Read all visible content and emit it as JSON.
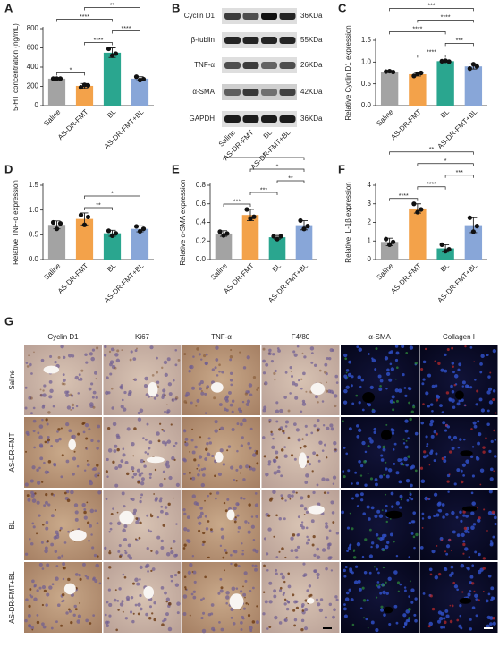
{
  "chart_data": [
    {
      "type": "bar",
      "panel": "A",
      "ylabel": "5-HT concentration (ng/mL)",
      "categories": [
        "Saline",
        "AS-DR-FMT",
        "BL",
        "AS-DR-FMT+BL"
      ],
      "colors": [
        "#a3a3a3",
        "#f3a24a",
        "#2aa68f",
        "#88a6d8"
      ],
      "values": [
        280,
        205,
        550,
        280
      ],
      "errors": [
        5,
        25,
        50,
        20
      ],
      "points": [
        [
          280,
          280,
          280
        ],
        [
          190,
          215,
          210
        ],
        [
          590,
          520,
          540
        ],
        [
          300,
          265,
          275
        ]
      ],
      "ylim": [
        0,
        800
      ],
      "yticks": [
        0,
        200,
        400,
        600,
        800
      ],
      "significance": [
        {
          "from": 0,
          "to": 1,
          "text": "*"
        },
        {
          "from": 1,
          "to": 2,
          "text": "****"
        },
        {
          "from": 2,
          "to": 3,
          "text": "****"
        },
        {
          "from": 0,
          "to": 2,
          "text": "****"
        },
        {
          "from": 1,
          "to": 3,
          "text": "**"
        }
      ]
    },
    {
      "type": "bar",
      "panel": "C",
      "ylabel": "Relative Cyclin D1 expression",
      "categories": [
        "Saline",
        "AS-DR-FMT",
        "BL",
        "AS-DR-FMT+BL"
      ],
      "colors": [
        "#a3a3a3",
        "#f3a24a",
        "#2aa68f",
        "#88a6d8"
      ],
      "values": [
        0.78,
        0.72,
        1.02,
        0.9
      ],
      "errors": [
        0.01,
        0.04,
        0.02,
        0.06
      ],
      "points": [
        [
          0.78,
          0.79,
          0.77
        ],
        [
          0.68,
          0.73,
          0.75
        ],
        [
          1.02,
          1.03,
          1.01
        ],
        [
          0.85,
          0.95,
          0.9
        ]
      ],
      "ylim": [
        0,
        1.5
      ],
      "yticks": [
        {
          "value": 0,
          "label": "0.0"
        },
        0.5,
        {
          "value": 1,
          "label": "1.0"
        },
        1.5
      ],
      "significance": [
        {
          "from": 1,
          "to": 2,
          "text": "****"
        },
        {
          "from": 2,
          "to": 3,
          "text": "***"
        },
        {
          "from": 0,
          "to": 2,
          "text": "****"
        },
        {
          "from": 1,
          "to": 3,
          "text": "****"
        },
        {
          "from": 0,
          "to": 3,
          "text": "***"
        }
      ]
    },
    {
      "type": "bar",
      "panel": "D",
      "ylabel": "Relative TNF-α expression",
      "categories": [
        "Saline",
        "AS-DR-FMT",
        "BL",
        "AS-DR-FMT+BL"
      ],
      "colors": [
        "#a3a3a3",
        "#f3a24a",
        "#2aa68f",
        "#88a6d8"
      ],
      "values": [
        0.7,
        0.82,
        0.53,
        0.62
      ],
      "errors": [
        0.08,
        0.12,
        0.06,
        0.06
      ],
      "points": [
        [
          0.75,
          0.62,
          0.73
        ],
        [
          0.9,
          0.7,
          0.86
        ],
        [
          0.58,
          0.48,
          0.53
        ],
        [
          0.67,
          0.57,
          0.62
        ]
      ],
      "ylim": [
        0,
        1.5
      ],
      "yticks": [
        {
          "value": 0,
          "label": "0.0"
        },
        0.5,
        {
          "value": 1,
          "label": "1.0"
        },
        1.5
      ],
      "significance": [
        {
          "from": 1,
          "to": 2,
          "text": "**"
        },
        {
          "from": 1,
          "to": 3,
          "text": "*"
        }
      ]
    },
    {
      "type": "bar",
      "panel": "E",
      "ylabel": "Relative α-SMA expression",
      "categories": [
        "Saline",
        "AS-DR-FMT",
        "BL",
        "AS-DR-FMT+BL"
      ],
      "colors": [
        "#a3a3a3",
        "#f3a24a",
        "#2aa68f",
        "#88a6d8"
      ],
      "values": [
        0.28,
        0.48,
        0.24,
        0.37
      ],
      "errors": [
        0.03,
        0.06,
        0.02,
        0.05
      ],
      "points": [
        [
          0.3,
          0.26,
          0.28
        ],
        [
          0.54,
          0.44,
          0.46
        ],
        [
          0.25,
          0.22,
          0.25
        ],
        [
          0.42,
          0.33,
          0.36
        ]
      ],
      "ylim": [
        0,
        0.8
      ],
      "yticks": [
        {
          "value": 0,
          "label": "0.0"
        },
        0.2,
        0.4,
        0.6,
        0.8
      ],
      "significance": [
        {
          "from": 0,
          "to": 1,
          "text": "***"
        },
        {
          "from": 1,
          "to": 2,
          "text": "***"
        },
        {
          "from": 2,
          "to": 3,
          "text": "**"
        },
        {
          "from": 1,
          "to": 3,
          "text": "*"
        },
        {
          "from": 0,
          "to": 3,
          "text": "*"
        }
      ]
    },
    {
      "type": "bar",
      "panel": "F",
      "ylabel": "Relative IL-1β expression",
      "categories": [
        "Saline",
        "AS-DR-FMT",
        "BL",
        "AS-DR-FMT+BL"
      ],
      "colors": [
        "#a3a3a3",
        "#f3a24a",
        "#2aa68f",
        "#88a6d8"
      ],
      "values": [
        0.95,
        2.75,
        0.6,
        1.85
      ],
      "errors": [
        0.2,
        0.25,
        0.2,
        0.4
      ],
      "points": [
        [
          1.1,
          0.8,
          0.95
        ],
        [
          3.0,
          2.55,
          2.7
        ],
        [
          0.8,
          0.45,
          0.55
        ],
        [
          2.25,
          1.5,
          1.8
        ]
      ],
      "ylim": [
        0,
        4
      ],
      "yticks": [
        0,
        1,
        2,
        3,
        4
      ],
      "significance": [
        {
          "from": 0,
          "to": 1,
          "text": "****"
        },
        {
          "from": 1,
          "to": 2,
          "text": "****"
        },
        {
          "from": 2,
          "to": 3,
          "text": "***"
        },
        {
          "from": 1,
          "to": 3,
          "text": "*"
        },
        {
          "from": 0,
          "to": 3,
          "text": "**"
        }
      ]
    }
  ],
  "blot": {
    "panel": "B",
    "proteins": [
      {
        "name": "Cyclin D1",
        "size": "36KDa"
      },
      {
        "name": "β-tublin",
        "size": "55KDa"
      },
      {
        "name": "TNF-α",
        "size": "26KDa"
      },
      {
        "name": "α-SMA",
        "size": "42KDa"
      },
      {
        "name": "GAPDH",
        "size": "36KDa"
      }
    ],
    "lanes": [
      "Saline",
      "AS-DR-FMT",
      "BL",
      "AS-DR-FMT+BL"
    ]
  },
  "histology": {
    "panel": "G",
    "columns": [
      "Cyclin D1",
      "Ki67",
      "TNF-α",
      "F4/80",
      "α-SMA",
      "Collagen I"
    ],
    "rows": [
      "Saline",
      "AS-DR-FMT",
      "BL",
      "AS-DR-FMT+BL"
    ]
  }
}
